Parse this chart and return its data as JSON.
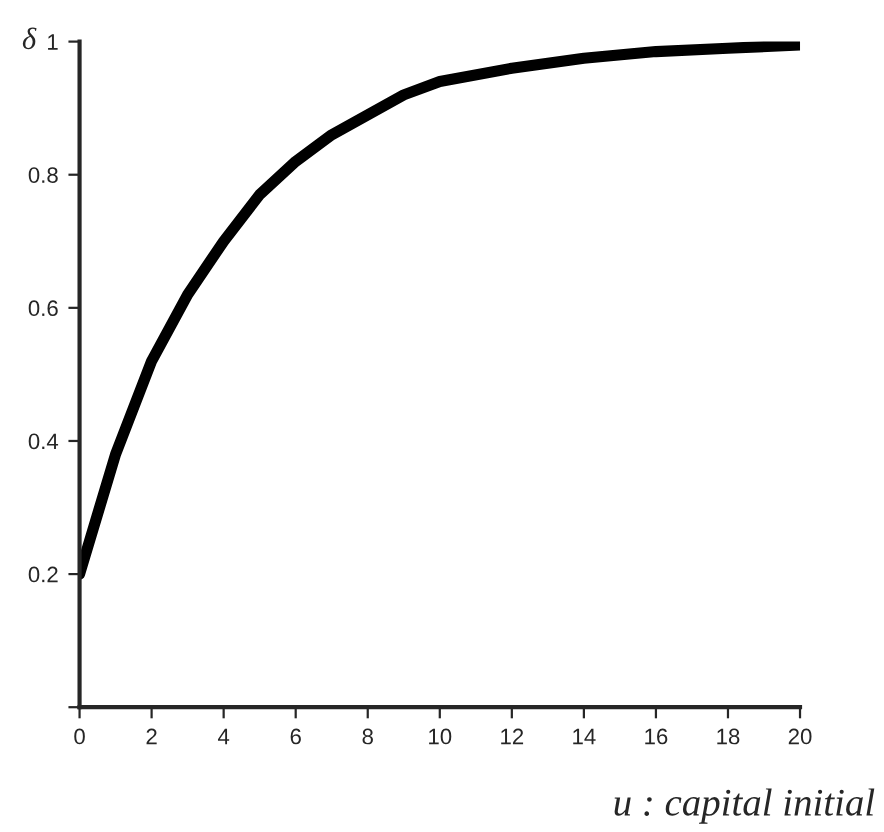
{
  "chart_data": {
    "type": "line",
    "xlabel": "u : capital initial",
    "ylabel": "δ",
    "x": [
      0,
      1,
      2,
      3,
      4,
      5,
      6,
      7,
      8,
      9,
      10,
      12,
      14,
      16,
      18,
      20
    ],
    "series": [
      {
        "color": "#000000",
        "values": [
          0.2,
          0.38,
          0.52,
          0.62,
          0.7,
          0.77,
          0.82,
          0.86,
          0.89,
          0.92,
          0.94,
          0.96,
          0.975,
          0.985,
          0.99,
          0.995
        ]
      }
    ],
    "xlim": [
      0,
      20
    ],
    "ylim": [
      0,
      1
    ],
    "xticks": [
      0,
      2,
      4,
      6,
      8,
      10,
      12,
      14,
      16,
      18,
      20
    ],
    "yticks": [
      {
        "value": 0,
        "label": null
      },
      0.2,
      0.4,
      0.6,
      0.8,
      1
    ],
    "grid": false,
    "legend": false,
    "marker": "none",
    "line_style": "solid"
  }
}
